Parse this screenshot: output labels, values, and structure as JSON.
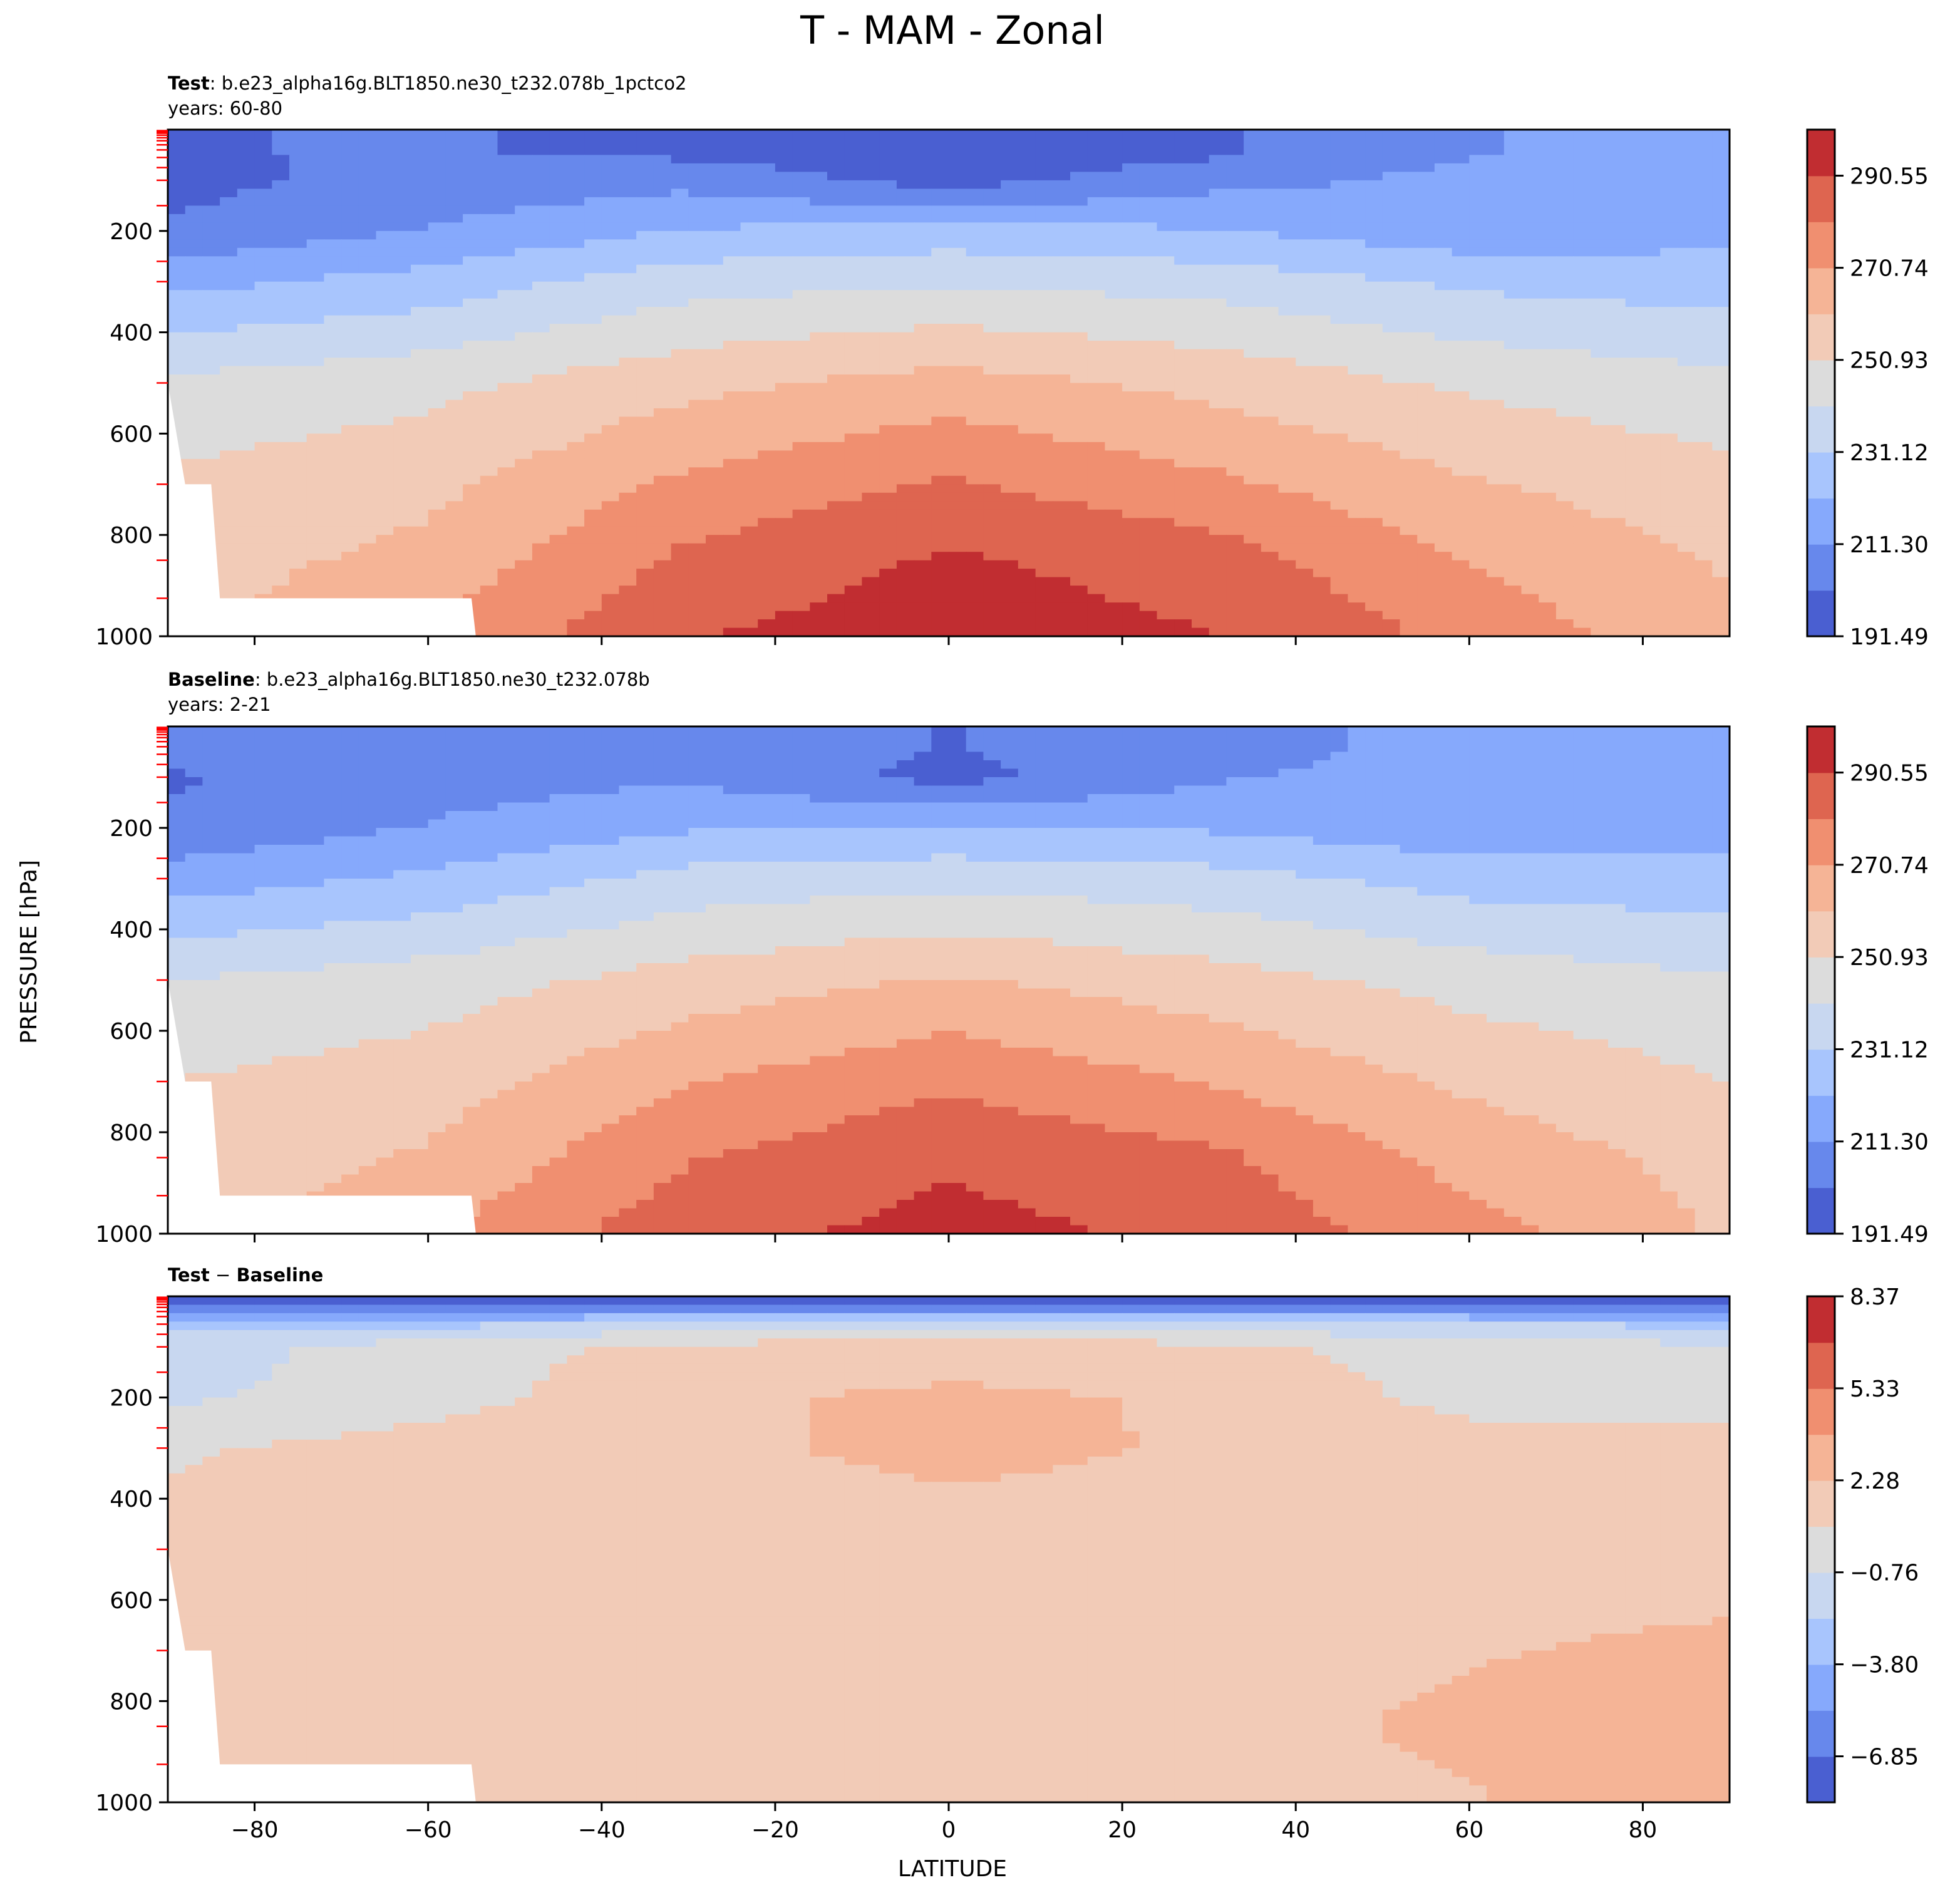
{
  "figure": {
    "title": "T - MAM - Zonal",
    "ylabel": "PRESSURE [hPa]",
    "xlabel": "LATITUDE"
  },
  "colors": {
    "coolwarm": [
      "#4a5fd1",
      "#6788ec",
      "#86a9fc",
      "#a8c5fd",
      "#c8d7f0",
      "#dcdcdc",
      "#f2cbb7",
      "#f5b496",
      "#f08f70",
      "#de6550",
      "#c12d31"
    ],
    "missing": "#ffffff",
    "axis": "#000000",
    "pressure_level_tick": "#ff0000"
  },
  "chart_data": [
    {
      "type": "contourf",
      "panel": "test",
      "label_bold": "Test",
      "label_rest": ": b.e23_alpha16g.BLT1850.ne30_t232.078b_1pctco2",
      "years": "years: 60-80",
      "x_ticks": [
        -80,
        -60,
        -40,
        -20,
        0,
        20,
        40,
        60,
        80
      ],
      "y_ticks": [
        200,
        400,
        600,
        800,
        1000
      ],
      "xlim": [
        -90,
        90
      ],
      "ylim": [
        1000,
        0
      ],
      "colorbar_ticks": [
        "290.55",
        "270.74",
        "250.93",
        "231.12",
        "211.30",
        "191.49"
      ],
      "contour_levels_K": [
        191.49,
        201.4,
        211.3,
        221.21,
        231.12,
        241.02,
        250.93,
        260.83,
        270.74,
        280.64,
        290.55,
        300.46
      ],
      "zonal_mean_T_K": {
        "lat": [
          -90,
          -60,
          -30,
          0,
          30,
          60,
          90
        ],
        "pressure_hPa": [
          50,
          100,
          200,
          300,
          500,
          700,
          850,
          1000
        ],
        "values": [
          [
            201,
            202,
            200,
            195,
            200,
            211,
            213
          ],
          [
            198,
            205,
            208,
            197,
            208,
            214,
            216
          ],
          [
            203,
            212,
            222,
            225,
            222,
            215,
            218
          ],
          [
            218,
            225,
            237,
            240,
            237,
            229,
            226
          ],
          [
            243,
            248,
            258,
            265,
            258,
            249,
            244
          ],
          [
            253,
            258,
            273,
            282,
            273,
            262,
            254
          ],
          [
            256,
            264,
            283,
            292,
            286,
            270,
            260
          ],
          [
            258,
            272,
            290,
            296,
            291,
            278,
            262
          ]
        ]
      }
    },
    {
      "type": "contourf",
      "panel": "baseline",
      "label_bold": "Baseline",
      "label_rest": ": b.e23_alpha16g.BLT1850.ne30_t232.078b",
      "years": "years: 2-21",
      "x_ticks": [
        -80,
        -60,
        -40,
        -20,
        0,
        20,
        40,
        60,
        80
      ],
      "y_ticks": [
        200,
        400,
        600,
        800,
        1000
      ],
      "xlim": [
        -90,
        90
      ],
      "ylim": [
        1000,
        0
      ],
      "colorbar_ticks": [
        "290.55",
        "270.74",
        "250.93",
        "231.12",
        "211.30",
        "191.49"
      ],
      "contour_levels_K": [
        191.49,
        201.4,
        211.3,
        221.21,
        231.12,
        241.02,
        250.93,
        260.83,
        270.74,
        280.64,
        290.55,
        300.46
      ],
      "zonal_mean_T_K": {
        "lat": [
          -90,
          -60,
          -30,
          0,
          30,
          60,
          90
        ],
        "pressure_hPa": [
          50,
          100,
          200,
          300,
          500,
          700,
          850,
          1000
        ],
        "values": [
          [
            206,
            208,
            206,
            201,
            206,
            216,
            218
          ],
          [
            200,
            207,
            210,
            198,
            210,
            216,
            218
          ],
          [
            203,
            212,
            220,
            222,
            220,
            214,
            218
          ],
          [
            216,
            223,
            235,
            238,
            235,
            227,
            225
          ],
          [
            241,
            246,
            255,
            262,
            255,
            247,
            242
          ],
          [
            251,
            256,
            270,
            279,
            270,
            259,
            251
          ],
          [
            254,
            262,
            280,
            289,
            283,
            267,
            257
          ],
          [
            256,
            270,
            287,
            294,
            288,
            275,
            259
          ]
        ]
      }
    },
    {
      "type": "contourf",
      "panel": "difference",
      "label_bold_a": "Test",
      "label_minus": " − ",
      "label_bold_b": "Baseline",
      "x_ticks": [
        -80,
        -60,
        -40,
        -20,
        0,
        20,
        40,
        60,
        80
      ],
      "y_ticks": [
        200,
        400,
        600,
        800,
        1000
      ],
      "xlim": [
        -90,
        90
      ],
      "ylim": [
        1000,
        0
      ],
      "colorbar_ticks": [
        "8.37",
        "5.33",
        "2.28",
        "−0.76",
        "−3.80",
        "−6.85"
      ],
      "contour_levels_K": [
        -8.37,
        -6.85,
        -5.33,
        -3.8,
        -2.28,
        -0.76,
        0.76,
        2.28,
        3.8,
        5.33,
        6.85,
        8.37
      ],
      "zonal_mean_dT_K": {
        "lat": [
          -90,
          -60,
          -30,
          0,
          30,
          60,
          90
        ],
        "pressure_hPa": [
          20,
          50,
          100,
          200,
          300,
          500,
          700,
          850,
          1000
        ],
        "values": [
          [
            -7.5,
            -7.5,
            -7.5,
            -7.0,
            -7.5,
            -7.2,
            -7.5
          ],
          [
            -2.5,
            -3.0,
            -2.0,
            -1.5,
            -1.8,
            -2.5,
            -2.8
          ],
          [
            -1.5,
            0.0,
            1.2,
            1.5,
            1.2,
            0.0,
            -0.5
          ],
          [
            -1.0,
            0.0,
            2.0,
            2.6,
            2.1,
            0.2,
            -0.2
          ],
          [
            0.5,
            1.5,
            2.1,
            2.5,
            2.2,
            1.5,
            1.5
          ],
          [
            1.5,
            1.6,
            1.8,
            1.9,
            1.8,
            1.8,
            1.8
          ],
          [
            2.0,
            1.8,
            1.9,
            2.0,
            1.9,
            2.2,
            2.5
          ],
          [
            2.0,
            1.7,
            1.9,
            2.0,
            1.9,
            2.5,
            2.8
          ],
          [
            2.0,
            0.5,
            1.9,
            2.0,
            1.9,
            2.2,
            3.0
          ]
        ]
      }
    }
  ]
}
